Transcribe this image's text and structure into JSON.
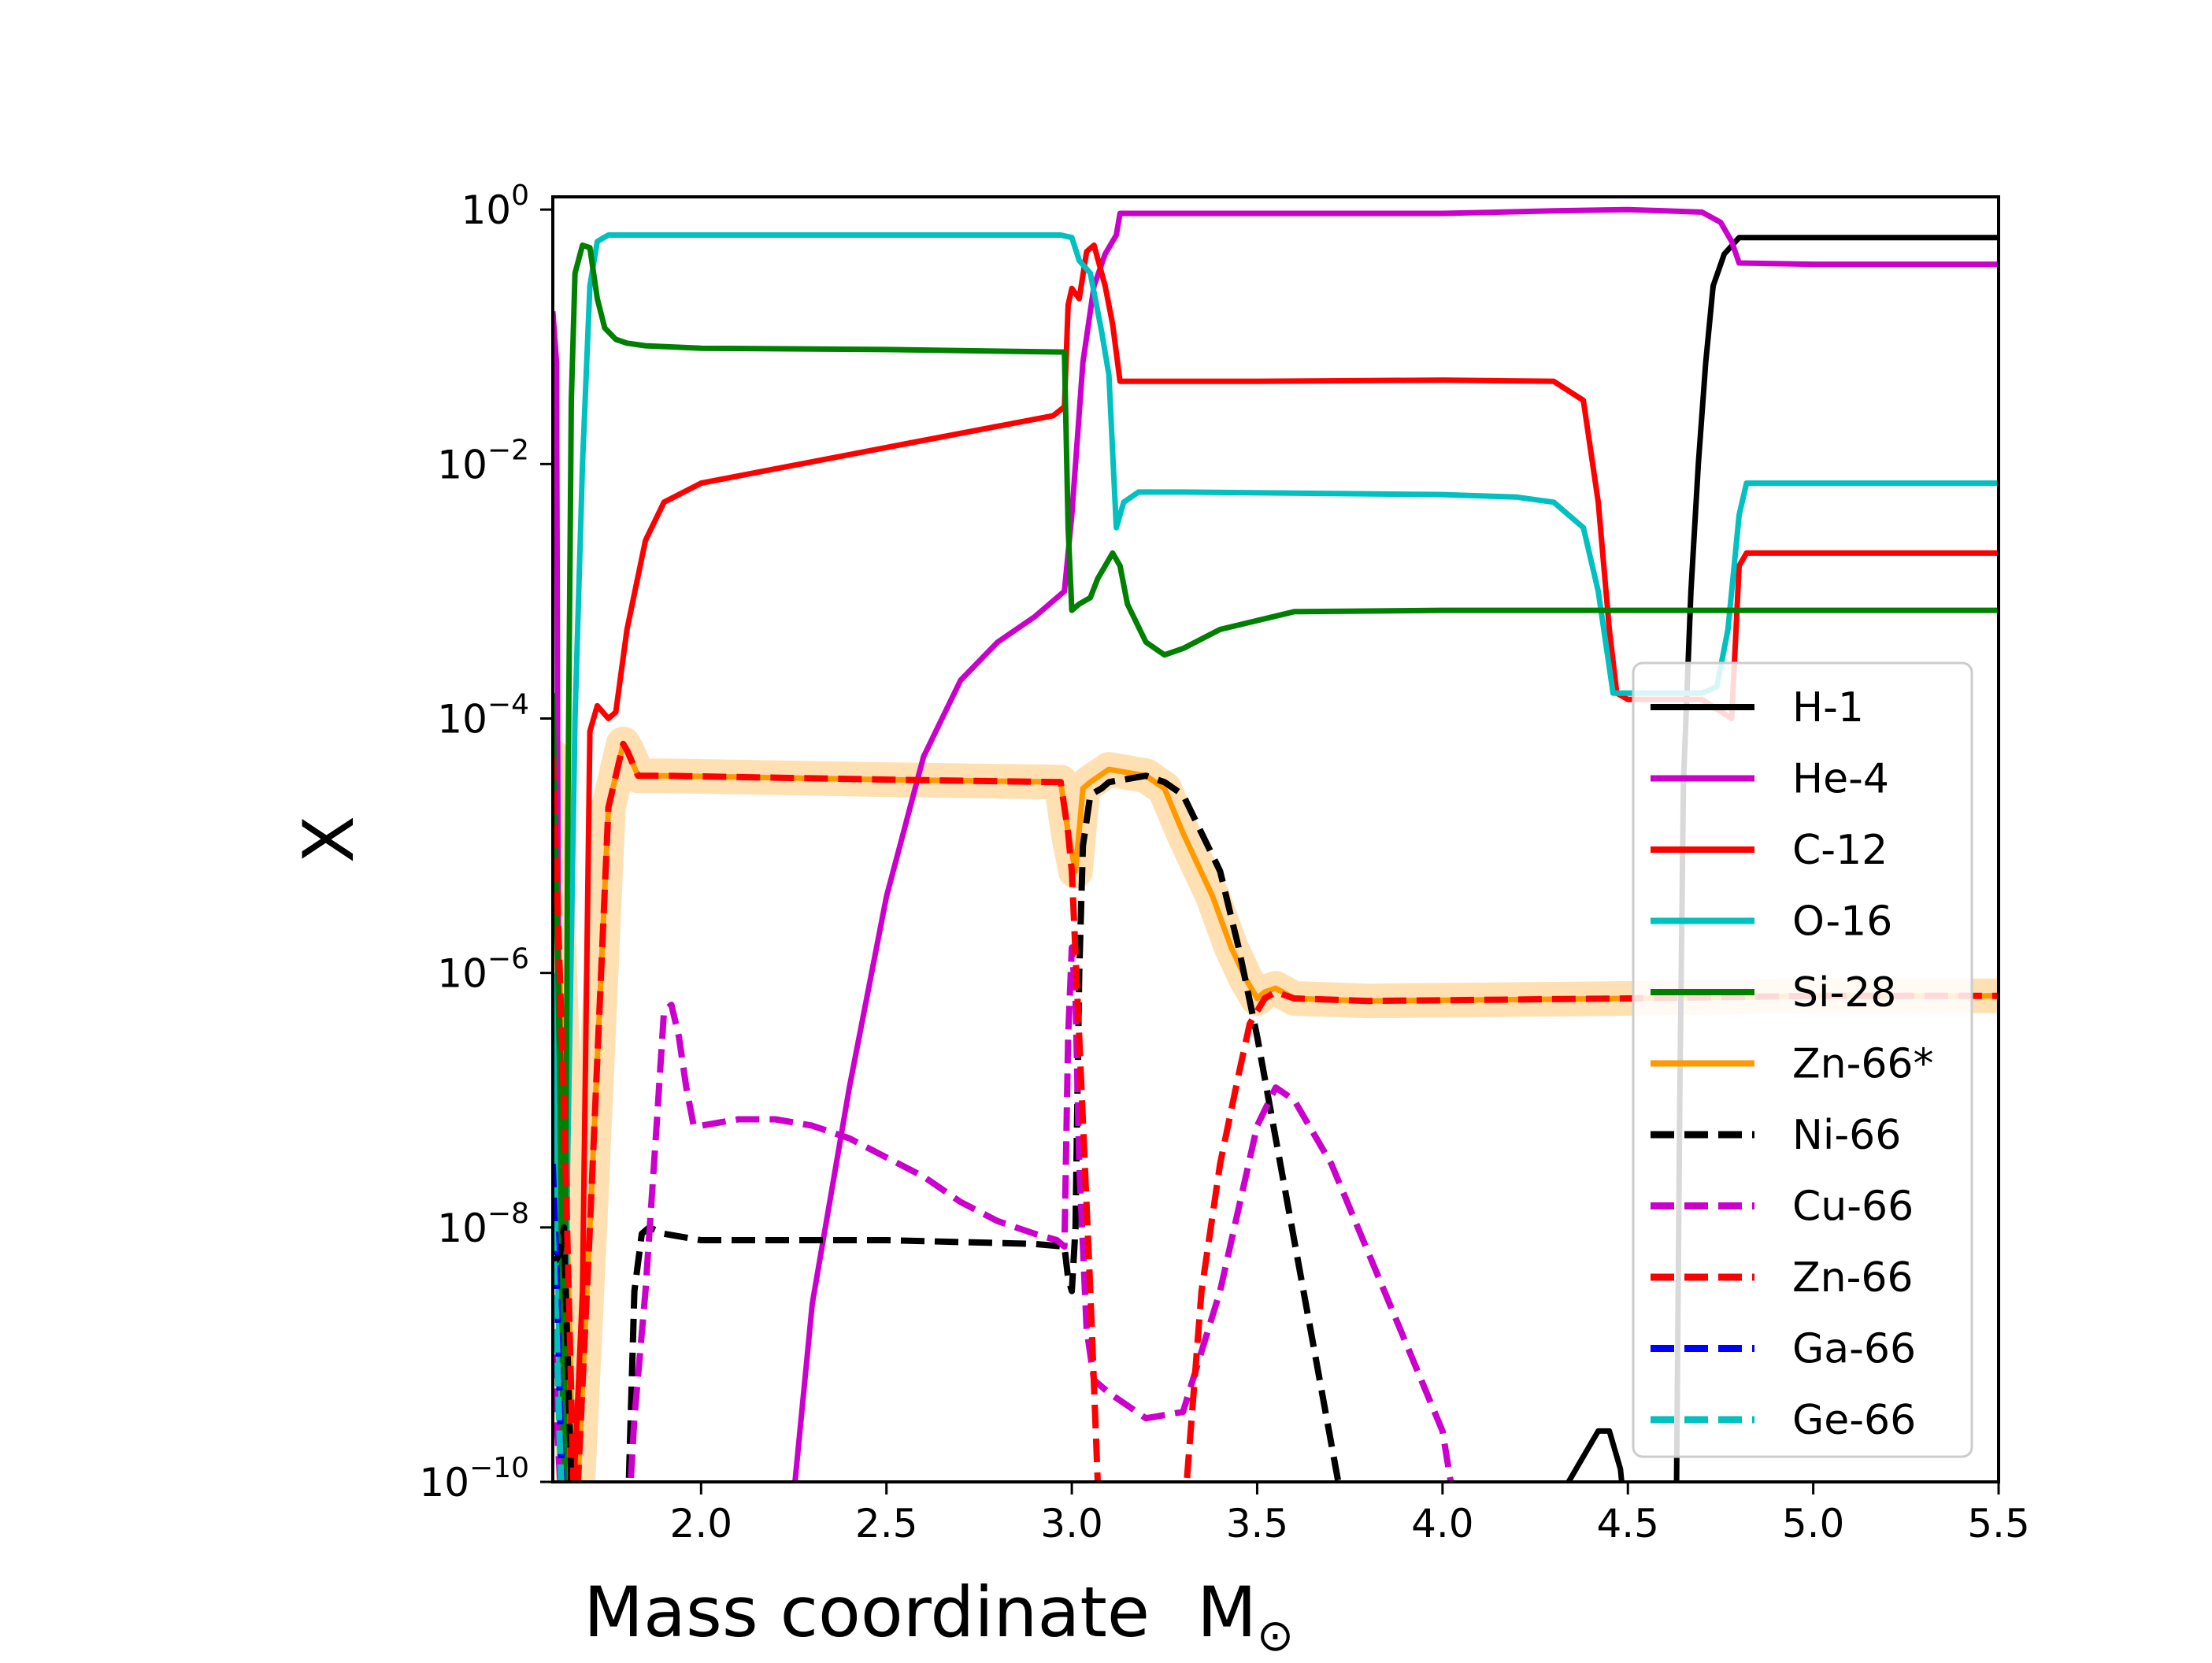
{
  "chart_data": {
    "type": "line",
    "title": "",
    "xlabel": "Mass coordinate",
    "xlabel_symbol": "M",
    "xlabel_subscript": "⊙",
    "ylabel": "X",
    "xlim": [
      1.6,
      5.5
    ],
    "ylim_log10": [
      -10,
      0.1
    ],
    "x_ticks": [
      {
        "value": 2.0,
        "label": "2.0"
      },
      {
        "value": 2.5,
        "label": "2.5"
      },
      {
        "value": 3.0,
        "label": "3.0"
      },
      {
        "value": 3.5,
        "label": "3.5"
      },
      {
        "value": 4.0,
        "label": "4.0"
      },
      {
        "value": 4.5,
        "label": "4.5"
      },
      {
        "value": 5.0,
        "label": "5.0"
      },
      {
        "value": 5.5,
        "label": "5.5"
      }
    ],
    "y_ticks": [
      {
        "log": 0,
        "base": "10",
        "exp": "0"
      },
      {
        "log": -2,
        "base": "10",
        "exp": "−2"
      },
      {
        "log": -4,
        "base": "10",
        "exp": "−4"
      },
      {
        "log": -6,
        "base": "10",
        "exp": "−6"
      },
      {
        "log": -8,
        "base": "10",
        "exp": "−8"
      },
      {
        "log": -10,
        "base": "10",
        "exp": "−10"
      }
    ],
    "legend_position": "lower-right",
    "series": [
      {
        "name": "Zn-66*",
        "color": "#ff9900",
        "style": "solid",
        "halo": true,
        "x": [
          1.6,
          1.63,
          1.66,
          1.7,
          1.75,
          1.79,
          1.8,
          1.83,
          1.9,
          2.5,
          2.97,
          2.99,
          3.01,
          3.03,
          3.05,
          3.1,
          3.2,
          3.25,
          3.3,
          3.38,
          3.43,
          3.47,
          3.5,
          3.52,
          3.55,
          3.6,
          3.8,
          4.5,
          5.0,
          5.5
        ],
        "logy": [
          -4.3,
          -7,
          -10.5,
          -8,
          -4.7,
          -4.2,
          -4.25,
          -4.45,
          -4.45,
          -4.48,
          -4.5,
          -4.9,
          -5.2,
          -4.55,
          -4.5,
          -4.4,
          -4.45,
          -4.55,
          -4.9,
          -5.4,
          -5.8,
          -6.05,
          -6.2,
          -6.15,
          -6.12,
          -6.2,
          -6.22,
          -6.2,
          -6.18,
          -6.18
        ]
      },
      {
        "name": "H-1",
        "color": "#000000",
        "style": "solid",
        "x": [
          1.62,
          1.63,
          1.64,
          4.3,
          4.34,
          4.38,
          4.42,
          4.45,
          4.48,
          4.5,
          4.63,
          4.64,
          4.65,
          4.67,
          4.69,
          4.71,
          4.73,
          4.76,
          4.8,
          5.5
        ],
        "logy": [
          -8.0,
          -8.2,
          -10.5,
          -10.5,
          -10.0,
          -9.8,
          -9.6,
          -9.6,
          -9.9,
          -10.5,
          -10.5,
          -7.0,
          -4.5,
          -3.0,
          -2.0,
          -1.2,
          -0.6,
          -0.35,
          -0.22,
          -0.22
        ],
        "gaps_after": [
          2
        ]
      },
      {
        "name": "He-4",
        "color": "#cc00cc",
        "style": "solid",
        "x": [
          1.6,
          1.61,
          1.62,
          2.24,
          2.25,
          2.3,
          2.4,
          2.5,
          2.6,
          2.7,
          2.8,
          2.9,
          2.98,
          3.0,
          3.03,
          3.06,
          3.09,
          3.12,
          3.13,
          3.5,
          4.0,
          4.3,
          4.5,
          4.6,
          4.7,
          4.75,
          4.78,
          4.8,
          5.0,
          5.5
        ],
        "logy": [
          -0.8,
          -1.2,
          -10.5,
          -10.5,
          -10.1,
          -8.6,
          -6.9,
          -5.4,
          -4.3,
          -3.7,
          -3.4,
          -3.2,
          -3.0,
          -2.4,
          -1.2,
          -0.6,
          -0.35,
          -0.2,
          -0.03,
          -0.03,
          -0.03,
          -0.01,
          0.0,
          -0.01,
          -0.02,
          -0.1,
          -0.25,
          -0.42,
          -0.43,
          -0.43
        ],
        "gaps_after": [
          2
        ]
      },
      {
        "name": "C-12",
        "color": "#ff0000",
        "style": "solid",
        "x": [
          1.6,
          1.63,
          1.65,
          1.68,
          1.7,
          1.72,
          1.75,
          1.77,
          1.8,
          1.85,
          1.9,
          2.0,
          2.5,
          2.95,
          2.98,
          2.99,
          3.0,
          3.02,
          3.04,
          3.06,
          3.09,
          3.11,
          3.13,
          3.5,
          4.0,
          4.3,
          4.38,
          4.42,
          4.45,
          4.47,
          4.5,
          4.6,
          4.7,
          4.78,
          4.79,
          4.8,
          4.82,
          5.5
        ],
        "logy": [
          -4.5,
          -7.5,
          -10.5,
          -8.5,
          -4.1,
          -3.9,
          -4.0,
          -3.95,
          -3.3,
          -2.6,
          -2.3,
          -2.15,
          -1.87,
          -1.62,
          -1.55,
          -0.75,
          -0.62,
          -0.7,
          -0.33,
          -0.28,
          -0.6,
          -0.9,
          -1.35,
          -1.35,
          -1.34,
          -1.35,
          -1.5,
          -2.3,
          -3.3,
          -3.8,
          -3.85,
          -3.85,
          -3.85,
          -4.0,
          -3.4,
          -2.8,
          -2.7,
          -2.7
        ]
      },
      {
        "name": "O-16",
        "color": "#00c0c0",
        "style": "solid",
        "x": [
          1.6,
          1.62,
          1.63,
          1.64,
          1.66,
          1.68,
          1.7,
          1.72,
          1.75,
          1.8,
          2.0,
          2.5,
          2.9,
          2.97,
          3.0,
          3.02,
          3.05,
          3.08,
          3.1,
          3.12,
          3.14,
          3.18,
          3.3,
          4.0,
          4.2,
          4.3,
          4.38,
          4.42,
          4.45,
          4.46,
          4.5,
          4.7,
          4.74,
          4.77,
          4.8,
          4.82,
          5.5
        ],
        "logy": [
          -6.0,
          -9.5,
          -10.5,
          -7.5,
          -4.0,
          -2.0,
          -0.6,
          -0.25,
          -0.2,
          -0.2,
          -0.2,
          -0.2,
          -0.2,
          -0.2,
          -0.22,
          -0.4,
          -0.5,
          -0.95,
          -1.3,
          -2.5,
          -2.3,
          -2.22,
          -2.22,
          -2.24,
          -2.26,
          -2.3,
          -2.5,
          -3.0,
          -3.6,
          -3.8,
          -3.8,
          -3.8,
          -3.75,
          -3.3,
          -2.4,
          -2.15,
          -2.15
        ]
      },
      {
        "name": "Si-28",
        "color": "#008000",
        "style": "solid",
        "x": [
          1.6,
          1.62,
          1.63,
          1.64,
          1.65,
          1.66,
          1.68,
          1.7,
          1.72,
          1.74,
          1.77,
          1.8,
          1.85,
          2.0,
          2.5,
          2.98,
          2.99,
          3.0,
          3.02,
          3.05,
          3.07,
          3.1,
          3.11,
          3.13,
          3.15,
          3.2,
          3.25,
          3.3,
          3.4,
          3.6,
          4.0,
          5.5
        ],
        "logy": [
          -3.8,
          -7.0,
          -10.5,
          -5.0,
          -1.5,
          -0.5,
          -0.28,
          -0.3,
          -0.7,
          -0.93,
          -1.02,
          -1.05,
          -1.07,
          -1.09,
          -1.1,
          -1.12,
          -2.5,
          -3.15,
          -3.1,
          -3.05,
          -2.9,
          -2.75,
          -2.7,
          -2.8,
          -3.1,
          -3.4,
          -3.5,
          -3.45,
          -3.3,
          -3.16,
          -3.15,
          -3.15
        ]
      },
      {
        "name": "Ni-66",
        "color": "#000000",
        "style": "dashed",
        "x": [
          1.6,
          1.62,
          1.63,
          1.64,
          1.65,
          1.66,
          1.8,
          1.81,
          1.82,
          1.84,
          1.86,
          1.9,
          2.0,
          2.5,
          2.9,
          2.98,
          2.99,
          3.0,
          3.01,
          3.02,
          3.03,
          3.05,
          3.08,
          3.1,
          3.2,
          3.25,
          3.3,
          3.4,
          3.45,
          3.5,
          3.55,
          3.6,
          3.65,
          3.7,
          3.75
        ],
        "logy": [
          -8.3,
          -8.2,
          -8.0,
          -9.0,
          -10.0,
          -10.5,
          -10.5,
          -9.5,
          -8.5,
          -8.05,
          -8.0,
          -8.05,
          -8.1,
          -8.1,
          -8.13,
          -8.15,
          -8.4,
          -8.5,
          -8.0,
          -6.0,
          -5.0,
          -4.6,
          -4.55,
          -4.5,
          -4.45,
          -4.5,
          -4.6,
          -5.2,
          -5.8,
          -6.5,
          -7.3,
          -8.1,
          -8.9,
          -9.7,
          -10.5
        ],
        "gaps_after": [
          5
        ]
      },
      {
        "name": "Cu-66",
        "color": "#cc00cc",
        "style": "dashed",
        "x": [
          1.6,
          1.61,
          1.62,
          1.63,
          1.65,
          1.66,
          1.8,
          1.82,
          1.85,
          1.88,
          1.9,
          1.92,
          1.94,
          1.96,
          1.98,
          2.0,
          2.1,
          2.2,
          2.3,
          2.4,
          2.5,
          2.6,
          2.7,
          2.8,
          2.9,
          2.96,
          2.98,
          2.99,
          3.0,
          3.01,
          3.02,
          3.04,
          3.06,
          3.1,
          3.15,
          3.2,
          3.3,
          3.4,
          3.5,
          3.55,
          3.6,
          3.7,
          3.8,
          3.9,
          4.0,
          4.05
        ],
        "logy": [
          -9.0,
          -9.5,
          -10.0,
          -10.5,
          -10.5,
          -10.5,
          -10.5,
          -9.5,
          -8.5,
          -7.2,
          -6.3,
          -6.25,
          -6.5,
          -6.9,
          -7.2,
          -7.2,
          -7.15,
          -7.15,
          -7.2,
          -7.3,
          -7.45,
          -7.6,
          -7.8,
          -7.95,
          -8.05,
          -8.1,
          -8.15,
          -6.5,
          -5.8,
          -6.2,
          -7.5,
          -8.8,
          -9.2,
          -9.3,
          -9.4,
          -9.5,
          -9.45,
          -8.5,
          -7.2,
          -6.9,
          -7.0,
          -7.5,
          -8.2,
          -8.9,
          -9.6,
          -10.5
        ],
        "gaps_after": [
          5
        ]
      },
      {
        "name": "Zn-66",
        "color": "#ff0000",
        "style": "dashed",
        "x": [
          1.6,
          1.63,
          1.66,
          1.7,
          1.75,
          1.79,
          1.8,
          1.83,
          1.9,
          2.5,
          2.97,
          2.99,
          3.0,
          3.02,
          3.05,
          3.07,
          3.08,
          3.3,
          3.31,
          3.35,
          3.4,
          3.45,
          3.48,
          3.5,
          3.52,
          3.55,
          3.6,
          3.8,
          4.5,
          5.0,
          5.5
        ],
        "logy": [
          -4.3,
          -7.0,
          -10.5,
          -8.0,
          -4.7,
          -4.2,
          -4.25,
          -4.45,
          -4.45,
          -4.48,
          -4.5,
          -4.9,
          -5.2,
          -6.5,
          -8.5,
          -10.0,
          -10.5,
          -10.5,
          -10.0,
          -8.5,
          -7.5,
          -6.8,
          -6.4,
          -6.3,
          -6.2,
          -6.15,
          -6.2,
          -6.22,
          -6.2,
          -6.18,
          -6.18
        ],
        "gaps_after": [
          16
        ]
      },
      {
        "name": "Ga-66",
        "color": "#0000ff",
        "style": "dashed",
        "x": [
          1.6,
          1.61,
          1.62,
          1.63
        ],
        "logy": [
          -7.5,
          -8.3,
          -9.5,
          -10.5
        ]
      },
      {
        "name": "Ge-66",
        "color": "#00c0c0",
        "style": "dashed",
        "x": [
          1.6,
          1.61,
          1.62,
          1.63
        ],
        "logy": [
          -8.0,
          -8.8,
          -9.8,
          -10.5
        ]
      }
    ]
  }
}
